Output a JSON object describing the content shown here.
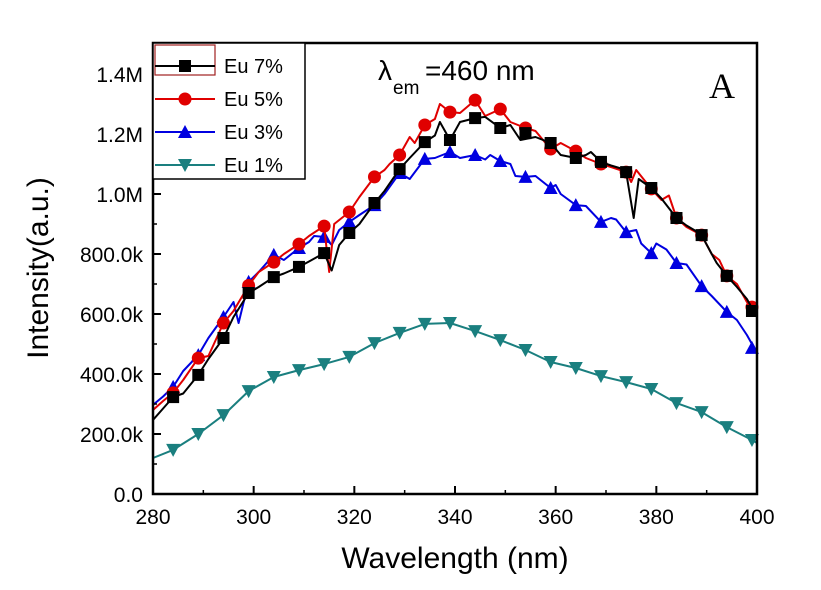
{
  "chart_data": {
    "type": "line",
    "title": "",
    "xlabel": "Wavelength (nm)",
    "ylabel": "Intensity(a.u.)",
    "xlim": [
      280,
      400
    ],
    "ylim": [
      0,
      1500000
    ],
    "xticks": [
      280,
      300,
      320,
      340,
      360,
      380,
      400
    ],
    "xtick_labels": [
      "280",
      "300",
      "320",
      "340",
      "360",
      "380",
      "400"
    ],
    "yticks": [
      0,
      200000,
      400000,
      600000,
      800000,
      1000000,
      1200000,
      1400000
    ],
    "ytick_labels": [
      "0.0",
      "200.0k",
      "400.0k",
      "600.0k",
      "800.0k",
      "1.0M",
      "1.2M",
      "1.4M"
    ],
    "grid": false,
    "legend_position": "top-left",
    "annotations": [
      {
        "text_main": "λ",
        "text_sub": "em",
        "text_rest": "=460 nm"
      },
      {
        "text": "A"
      }
    ],
    "marker_x": [
      284,
      289,
      294,
      299,
      304,
      309,
      314,
      319,
      324,
      329,
      334,
      339,
      344,
      349,
      354,
      359,
      364,
      369,
      374,
      379,
      384,
      389,
      394,
      399
    ],
    "series": [
      {
        "name": "Eu 7%",
        "color": "#000000",
        "marker": "square",
        "values": [
          323000,
          397000,
          520000,
          670000,
          723000,
          757000,
          803000,
          870000,
          970000,
          1083000,
          1173000,
          1180000,
          1253000,
          1220000,
          1203000,
          1170000,
          1120000,
          1107000,
          1073000,
          1020000,
          920000,
          863000,
          727000,
          610000
        ],
        "line": [
          [
            280,
            247000
          ],
          [
            282,
            285000
          ],
          [
            284,
            323000
          ],
          [
            286,
            335000
          ],
          [
            289,
            397000
          ],
          [
            291,
            450000
          ],
          [
            294,
            520000
          ],
          [
            296,
            590000
          ],
          [
            299,
            670000
          ],
          [
            301,
            690000
          ],
          [
            304,
            723000
          ],
          [
            306,
            735000
          ],
          [
            309,
            757000
          ],
          [
            311,
            775000
          ],
          [
            314,
            803000
          ],
          [
            315.5,
            745000
          ],
          [
            317,
            830000
          ],
          [
            319,
            870000
          ],
          [
            321,
            900000
          ],
          [
            324,
            970000
          ],
          [
            326,
            1010000
          ],
          [
            329,
            1083000
          ],
          [
            331,
            1120000
          ],
          [
            334,
            1173000
          ],
          [
            336,
            1195000
          ],
          [
            337,
            1240000
          ],
          [
            339,
            1180000
          ],
          [
            341,
            1240000
          ],
          [
            344,
            1253000
          ],
          [
            346,
            1257000
          ],
          [
            349,
            1220000
          ],
          [
            351,
            1230000
          ],
          [
            353,
            1180000
          ],
          [
            356,
            1190000
          ],
          [
            359,
            1170000
          ],
          [
            361,
            1130000
          ],
          [
            364,
            1120000
          ],
          [
            366,
            1130000
          ],
          [
            367,
            1140000
          ],
          [
            369,
            1107000
          ],
          [
            371,
            1095000
          ],
          [
            373,
            1085000
          ],
          [
            374,
            1073000
          ],
          [
            375.5,
            920000
          ],
          [
            376.5,
            1050000
          ],
          [
            379,
            1020000
          ],
          [
            381,
            985000
          ],
          [
            384,
            920000
          ],
          [
            386,
            895000
          ],
          [
            387.5,
            880000
          ],
          [
            389,
            863000
          ],
          [
            391,
            800000
          ],
          [
            392,
            770000
          ],
          [
            394,
            727000
          ],
          [
            396,
            690000
          ],
          [
            398,
            650000
          ],
          [
            400,
            590000
          ]
        ]
      },
      {
        "name": "Eu 5%",
        "color": "#e00000",
        "marker": "circle",
        "values": [
          337000,
          453000,
          570000,
          695000,
          773000,
          833000,
          893000,
          940000,
          1057000,
          1130000,
          1230000,
          1273000,
          1313000,
          1283000,
          1220000,
          1150000,
          1143000,
          1100000,
          1073000,
          1017000,
          920000,
          863000,
          727000,
          623000
        ],
        "line": [
          [
            280,
            280000
          ],
          [
            282,
            310000
          ],
          [
            284,
            337000
          ],
          [
            286,
            380000
          ],
          [
            289,
            453000
          ],
          [
            291,
            460000
          ],
          [
            294,
            570000
          ],
          [
            296,
            610000
          ],
          [
            299,
            695000
          ],
          [
            301,
            740000
          ],
          [
            304,
            773000
          ],
          [
            306,
            800000
          ],
          [
            309,
            833000
          ],
          [
            311,
            860000
          ],
          [
            314,
            893000
          ],
          [
            315,
            740000
          ],
          [
            316,
            900000
          ],
          [
            319,
            940000
          ],
          [
            321,
            990000
          ],
          [
            324,
            1057000
          ],
          [
            326,
            1080000
          ],
          [
            327,
            1100000
          ],
          [
            329,
            1130000
          ],
          [
            331,
            1190000
          ],
          [
            332,
            1170000
          ],
          [
            334,
            1230000
          ],
          [
            336,
            1250000
          ],
          [
            337,
            1300000
          ],
          [
            339,
            1273000
          ],
          [
            341,
            1270000
          ],
          [
            344,
            1313000
          ],
          [
            346,
            1260000
          ],
          [
            349,
            1283000
          ],
          [
            351,
            1240000
          ],
          [
            354,
            1220000
          ],
          [
            356,
            1210000
          ],
          [
            359,
            1150000
          ],
          [
            361,
            1170000
          ],
          [
            364,
            1143000
          ],
          [
            366,
            1120000
          ],
          [
            369,
            1100000
          ],
          [
            371,
            1090000
          ],
          [
            374,
            1073000
          ],
          [
            375,
            1040000
          ],
          [
            376,
            1080000
          ],
          [
            379,
            1017000
          ],
          [
            381,
            980000
          ],
          [
            382.5,
            995000
          ],
          [
            384,
            920000
          ],
          [
            386,
            890000
          ],
          [
            389,
            863000
          ],
          [
            391,
            800000
          ],
          [
            392.5,
            780000
          ],
          [
            394,
            727000
          ],
          [
            396,
            700000
          ],
          [
            398,
            640000
          ],
          [
            400,
            610000
          ]
        ]
      },
      {
        "name": "Eu 3%",
        "color": "#0000e0",
        "marker": "triangle-up",
        "values": [
          357000,
          463000,
          590000,
          707000,
          797000,
          820000,
          857000,
          907000,
          963000,
          1070000,
          1117000,
          1140000,
          1130000,
          1110000,
          1057000,
          1020000,
          963000,
          907000,
          873000,
          803000,
          770000,
          693000,
          607000,
          487000
        ],
        "line": [
          [
            280,
            297000
          ],
          [
            282,
            325000
          ],
          [
            284,
            357000
          ],
          [
            286,
            410000
          ],
          [
            289,
            463000
          ],
          [
            291,
            520000
          ],
          [
            294,
            590000
          ],
          [
            296,
            640000
          ],
          [
            297,
            570000
          ],
          [
            299,
            707000
          ],
          [
            301,
            740000
          ],
          [
            304,
            797000
          ],
          [
            306,
            780000
          ],
          [
            309,
            820000
          ],
          [
            311,
            840000
          ],
          [
            312,
            860000
          ],
          [
            314,
            857000
          ],
          [
            315.5,
            830000
          ],
          [
            317,
            880000
          ],
          [
            319,
            907000
          ],
          [
            321,
            930000
          ],
          [
            324,
            963000
          ],
          [
            326,
            1000000
          ],
          [
            329,
            1070000
          ],
          [
            331,
            1050000
          ],
          [
            334,
            1117000
          ],
          [
            336,
            1120000
          ],
          [
            339,
            1140000
          ],
          [
            341,
            1120000
          ],
          [
            344,
            1130000
          ],
          [
            346,
            1115000
          ],
          [
            347,
            1130000
          ],
          [
            349,
            1110000
          ],
          [
            351,
            1100000
          ],
          [
            352,
            1060000
          ],
          [
            354,
            1057000
          ],
          [
            356,
            1060000
          ],
          [
            359,
            1020000
          ],
          [
            360,
            1030000
          ],
          [
            361,
            1000000
          ],
          [
            364,
            963000
          ],
          [
            366,
            960000
          ],
          [
            369,
            907000
          ],
          [
            371,
            920000
          ],
          [
            372,
            915000
          ],
          [
            374,
            873000
          ],
          [
            376,
            880000
          ],
          [
            377,
            835000
          ],
          [
            379,
            803000
          ],
          [
            380,
            835000
          ],
          [
            382,
            815000
          ],
          [
            384,
            770000
          ],
          [
            386,
            765000
          ],
          [
            389,
            693000
          ],
          [
            391,
            660000
          ],
          [
            394,
            607000
          ],
          [
            396,
            580000
          ],
          [
            398,
            530000
          ],
          [
            400,
            470000
          ]
        ]
      },
      {
        "name": "Eu 1%",
        "color": "#1a7f7f",
        "marker": "triangle-down",
        "values": [
          147000,
          200000,
          263000,
          343000,
          390000,
          413000,
          433000,
          457000,
          503000,
          537000,
          567000,
          570000,
          543000,
          513000,
          480000,
          440000,
          420000,
          393000,
          373000,
          350000,
          303000,
          273000,
          223000,
          180000
        ],
        "line": [
          [
            280,
            120000
          ],
          [
            284,
            147000
          ],
          [
            289,
            200000
          ],
          [
            294,
            263000
          ],
          [
            299,
            343000
          ],
          [
            304,
            390000
          ],
          [
            309,
            413000
          ],
          [
            314,
            433000
          ],
          [
            319,
            457000
          ],
          [
            324,
            503000
          ],
          [
            329,
            537000
          ],
          [
            334,
            567000
          ],
          [
            339,
            570000
          ],
          [
            344,
            543000
          ],
          [
            349,
            513000
          ],
          [
            354,
            480000
          ],
          [
            359,
            440000
          ],
          [
            364,
            420000
          ],
          [
            369,
            393000
          ],
          [
            374,
            373000
          ],
          [
            379,
            350000
          ],
          [
            384,
            303000
          ],
          [
            389,
            273000
          ],
          [
            394,
            223000
          ],
          [
            399,
            180000
          ],
          [
            400,
            170000
          ]
        ]
      }
    ]
  }
}
